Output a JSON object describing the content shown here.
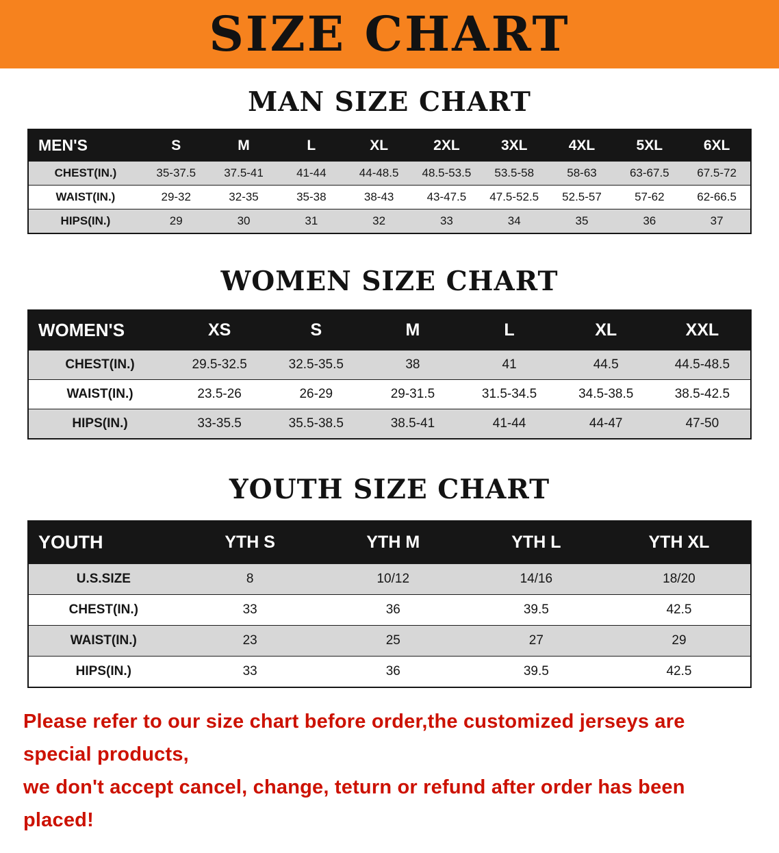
{
  "banner": {
    "title": "SIZE CHART",
    "bg_color": "#F6821E",
    "text_color": "#121212"
  },
  "men": {
    "heading": "MAN SIZE CHART",
    "corner": "MEN'S",
    "columns": [
      "S",
      "M",
      "L",
      "XL",
      "2XL",
      "3XL",
      "4XL",
      "5XL",
      "6XL"
    ],
    "rows": [
      {
        "label": "CHEST(IN.)",
        "values": [
          "35-37.5",
          "37.5-41",
          "41-44",
          "44-48.5",
          "48.5-53.5",
          "53.5-58",
          "58-63",
          "63-67.5",
          "67.5-72"
        ]
      },
      {
        "label": "WAIST(IN.)",
        "values": [
          "29-32",
          "32-35",
          "35-38",
          "38-43",
          "43-47.5",
          "47.5-52.5",
          "52.5-57",
          "57-62",
          "62-66.5"
        ]
      },
      {
        "label": "HIPS(IN.)",
        "values": [
          "29",
          "30",
          "31",
          "32",
          "33",
          "34",
          "35",
          "36",
          "37"
        ]
      }
    ]
  },
  "women": {
    "heading": "WOMEN SIZE CHART",
    "corner": "WOMEN'S",
    "columns": [
      "XS",
      "S",
      "M",
      "L",
      "XL",
      "XXL"
    ],
    "rows": [
      {
        "label": "CHEST(IN.)",
        "values": [
          "29.5-32.5",
          "32.5-35.5",
          "38",
          "41",
          "44.5",
          "44.5-48.5"
        ]
      },
      {
        "label": "WAIST(IN.)",
        "values": [
          "23.5-26",
          "26-29",
          "29-31.5",
          "31.5-34.5",
          "34.5-38.5",
          "38.5-42.5"
        ]
      },
      {
        "label": "HIPS(IN.)",
        "values": [
          "33-35.5",
          "35.5-38.5",
          "38.5-41",
          "41-44",
          "44-47",
          "47-50"
        ]
      }
    ]
  },
  "youth": {
    "heading": "YOUTH SIZE CHART",
    "corner": "YOUTH",
    "columns": [
      "YTH S",
      "YTH M",
      "YTH L",
      "YTH XL"
    ],
    "rows": [
      {
        "label": "U.S.SIZE",
        "values": [
          "8",
          "10/12",
          "14/16",
          "18/20"
        ]
      },
      {
        "label": "CHEST(IN.)",
        "values": [
          "33",
          "36",
          "39.5",
          "42.5"
        ]
      },
      {
        "label": "WAIST(IN.)",
        "values": [
          "23",
          "25",
          "27",
          "29"
        ]
      },
      {
        "label": "HIPS(IN.)",
        "values": [
          "33",
          "36",
          "39.5",
          "42.5"
        ]
      }
    ]
  },
  "footer": {
    "line1": "Please refer to our size chart before order,the customized jerseys are special products,",
    "line2": "we don't accept cancel, change, teturn or refund after order has been placed!",
    "text_color": "#CC1100"
  }
}
